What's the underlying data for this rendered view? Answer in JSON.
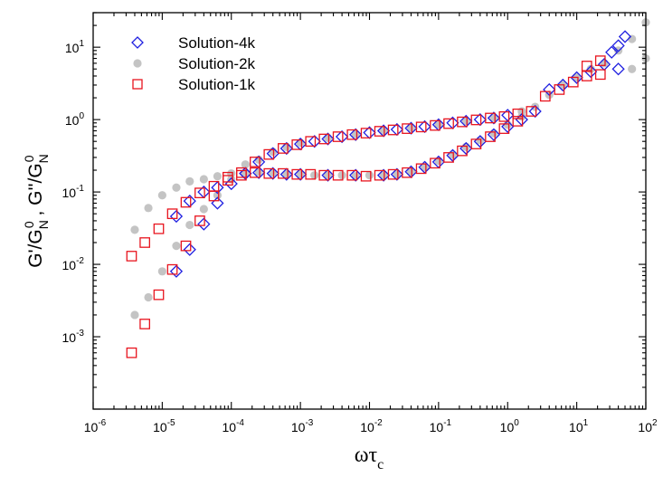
{
  "chart_data": {
    "type": "scatter",
    "title": "",
    "xlabel": {
      "main": "ωτ",
      "sub": "c"
    },
    "ylabel": [
      {
        "t": "G'/G",
        "kind": "n"
      },
      {
        "t": "N",
        "kind": "sub"
      },
      {
        "t": "0",
        "kind": "sup"
      },
      {
        "t": " , G''/G",
        "kind": "n"
      },
      {
        "t": "N",
        "kind": "sub"
      },
      {
        "t": "0",
        "kind": "sup"
      }
    ],
    "x_scale": "log",
    "y_scale": "log",
    "xlim": [
      1e-06,
      100
    ],
    "ylim": [
      0.0001,
      30
    ],
    "x_tick_values": [
      1e-06,
      1e-05,
      0.0001,
      0.001,
      0.01,
      0.1,
      1,
      10,
      100
    ],
    "y_tick_values": [
      0.001,
      0.01,
      0.1,
      1,
      10
    ],
    "x_tick_labels": [
      [
        "10",
        "-6"
      ],
      [
        "10",
        "-5"
      ],
      [
        "10",
        "-4"
      ],
      [
        "10",
        "-3"
      ],
      [
        "10",
        "-2"
      ],
      [
        "10",
        "-1"
      ],
      [
        "10",
        "0"
      ],
      [
        "10",
        "1"
      ],
      [
        "10",
        "2"
      ]
    ],
    "y_tick_labels": [
      [
        "10",
        "-3"
      ],
      [
        "10",
        "-2"
      ],
      [
        "10",
        "-1"
      ],
      [
        "10",
        "0"
      ],
      [
        "10",
        "1"
      ]
    ],
    "grid": false,
    "legend_position": "top-left",
    "series": [
      {
        "name": "Solution-4k",
        "marker": "diamond",
        "filled": false,
        "color": "#1f1fe0",
        "points": [
          [
            1.6e-05,
            0.046
          ],
          [
            2.5e-05,
            0.075
          ],
          [
            4e-05,
            0.1
          ],
          [
            6.3e-05,
            0.115
          ],
          [
            0.0001,
            0.13
          ],
          [
            1.6e-05,
            0.008
          ],
          [
            2.5e-05,
            0.016
          ],
          [
            4e-05,
            0.036
          ],
          [
            6.3e-05,
            0.07
          ],
          [
            0.00016,
            0.18
          ],
          [
            0.00025,
            0.26
          ],
          [
            0.0004,
            0.34
          ],
          [
            0.00063,
            0.4
          ],
          [
            0.001,
            0.46
          ],
          [
            0.0016,
            0.5
          ],
          [
            0.0025,
            0.54
          ],
          [
            0.004,
            0.58
          ],
          [
            0.0063,
            0.62
          ],
          [
            0.01,
            0.66
          ],
          [
            0.016,
            0.7
          ],
          [
            0.025,
            0.73
          ],
          [
            0.04,
            0.76
          ],
          [
            0.063,
            0.8
          ],
          [
            0.1,
            0.85
          ],
          [
            0.16,
            0.9
          ],
          [
            0.25,
            0.95
          ],
          [
            0.4,
            1.0
          ],
          [
            0.63,
            1.05
          ],
          [
            1.0,
            1.15
          ],
          [
            0.00016,
            0.18
          ],
          [
            0.00025,
            0.185
          ],
          [
            0.0004,
            0.18
          ],
          [
            0.00063,
            0.175
          ],
          [
            0.001,
            0.175
          ],
          [
            0.0025,
            0.17
          ],
          [
            0.0063,
            0.17
          ],
          [
            0.016,
            0.17
          ],
          [
            0.025,
            0.175
          ],
          [
            0.04,
            0.19
          ],
          [
            0.063,
            0.22
          ],
          [
            0.1,
            0.26
          ],
          [
            0.16,
            0.32
          ],
          [
            0.25,
            0.4
          ],
          [
            0.4,
            0.5
          ],
          [
            0.63,
            0.62
          ],
          [
            1.0,
            0.8
          ],
          [
            1.6,
            1.0
          ],
          [
            2.5,
            1.3
          ],
          [
            4.0,
            2.6
          ],
          [
            6.3,
            3.0
          ],
          [
            10,
            3.8
          ],
          [
            16,
            4.6
          ],
          [
            25,
            5.8
          ],
          [
            32,
            8.5
          ],
          [
            40,
            5.0
          ],
          [
            40,
            10.5
          ],
          [
            50,
            14.0
          ]
        ]
      },
      {
        "name": "Solution-2k",
        "marker": "circle",
        "filled": true,
        "color": "#c4c4c4",
        "points": [
          [
            4e-06,
            0.03
          ],
          [
            6.3e-06,
            0.06
          ],
          [
            1e-05,
            0.09
          ],
          [
            1.6e-05,
            0.115
          ],
          [
            2.5e-05,
            0.14
          ],
          [
            4e-06,
            0.002
          ],
          [
            6.3e-06,
            0.0035
          ],
          [
            1e-05,
            0.008
          ],
          [
            1.6e-05,
            0.018
          ],
          [
            2.5e-05,
            0.035
          ],
          [
            4e-05,
            0.058
          ],
          [
            6.3e-05,
            0.09
          ],
          [
            0.0001,
            0.15
          ],
          [
            0.00016,
            0.24
          ],
          [
            4e-05,
            0.15
          ],
          [
            6.3e-05,
            0.165
          ],
          [
            0.0001,
            0.18
          ],
          [
            0.00025,
            0.19
          ],
          [
            0.0004,
            0.185
          ],
          [
            0.00016,
            0.18
          ],
          [
            0.00063,
            0.175
          ],
          [
            0.001,
            0.175
          ],
          [
            0.0016,
            0.17
          ],
          [
            0.0025,
            0.17
          ],
          [
            0.004,
            0.17
          ],
          [
            0.0063,
            0.165
          ],
          [
            0.01,
            0.17
          ],
          [
            0.016,
            0.17
          ],
          [
            0.025,
            0.175
          ],
          [
            0.04,
            0.19
          ],
          [
            0.063,
            0.22
          ],
          [
            0.1,
            0.27
          ],
          [
            0.16,
            0.33
          ],
          [
            0.25,
            0.42
          ],
          [
            0.4,
            0.52
          ],
          [
            0.63,
            0.65
          ],
          [
            1.0,
            0.85
          ],
          [
            1.6,
            1.1
          ],
          [
            2.5,
            1.5
          ],
          [
            0.00025,
            0.28
          ],
          [
            0.0004,
            0.36
          ],
          [
            0.00063,
            0.42
          ],
          [
            0.001,
            0.48
          ],
          [
            0.0025,
            0.56
          ],
          [
            0.0063,
            0.63
          ],
          [
            0.016,
            0.7
          ],
          [
            0.04,
            0.77
          ],
          [
            0.1,
            0.86
          ],
          [
            0.25,
            0.96
          ],
          [
            0.63,
            1.06
          ],
          [
            1.6,
            1.3
          ],
          [
            4.0,
            2.2
          ],
          [
            6.3,
            3.0
          ],
          [
            10,
            3.8
          ],
          [
            16,
            5.0
          ],
          [
            25,
            6.0
          ],
          [
            40,
            9.0
          ],
          [
            63,
            13.0
          ],
          [
            100,
            22.0
          ],
          [
            63,
            5.0
          ],
          [
            100,
            7.0
          ]
        ]
      },
      {
        "name": "Solution-1k",
        "marker": "square",
        "filled": false,
        "color": "#e8141e",
        "points": [
          [
            3.6e-06,
            0.013
          ],
          [
            5.6e-06,
            0.02
          ],
          [
            8.9e-06,
            0.031
          ],
          [
            1.4e-05,
            0.05
          ],
          [
            2.2e-05,
            0.072
          ],
          [
            3.5e-05,
            0.097
          ],
          [
            5.6e-05,
            0.12
          ],
          [
            8.9e-05,
            0.145
          ],
          [
            0.00014,
            0.17
          ],
          [
            3.6e-06,
            0.0006
          ],
          [
            5.6e-06,
            0.0015
          ],
          [
            8.9e-06,
            0.0038
          ],
          [
            1.4e-05,
            0.0085
          ],
          [
            2.2e-05,
            0.018
          ],
          [
            3.5e-05,
            0.04
          ],
          [
            5.6e-05,
            0.088
          ],
          [
            8.9e-05,
            0.16
          ],
          [
            0.00014,
            0.185
          ],
          [
            0.00022,
            0.26
          ],
          [
            0.00035,
            0.33
          ],
          [
            0.00056,
            0.4
          ],
          [
            0.00089,
            0.45
          ],
          [
            0.0014,
            0.5
          ],
          [
            0.0022,
            0.54
          ],
          [
            0.0035,
            0.58
          ],
          [
            0.0056,
            0.62
          ],
          [
            0.0089,
            0.65
          ],
          [
            0.014,
            0.69
          ],
          [
            0.022,
            0.72
          ],
          [
            0.035,
            0.75
          ],
          [
            0.056,
            0.79
          ],
          [
            0.089,
            0.83
          ],
          [
            0.14,
            0.88
          ],
          [
            0.22,
            0.93
          ],
          [
            0.35,
            0.99
          ],
          [
            0.56,
            1.05
          ],
          [
            0.89,
            1.1
          ],
          [
            1.4,
            1.2
          ],
          [
            0.00022,
            0.185
          ],
          [
            0.00035,
            0.18
          ],
          [
            0.00056,
            0.18
          ],
          [
            0.00089,
            0.175
          ],
          [
            0.0014,
            0.175
          ],
          [
            0.0022,
            0.17
          ],
          [
            0.0035,
            0.17
          ],
          [
            0.0056,
            0.17
          ],
          [
            0.0089,
            0.165
          ],
          [
            0.014,
            0.17
          ],
          [
            0.022,
            0.175
          ],
          [
            0.035,
            0.185
          ],
          [
            0.056,
            0.21
          ],
          [
            0.089,
            0.25
          ],
          [
            0.14,
            0.3
          ],
          [
            0.22,
            0.37
          ],
          [
            0.35,
            0.46
          ],
          [
            0.56,
            0.58
          ],
          [
            0.89,
            0.75
          ],
          [
            1.4,
            0.95
          ],
          [
            2.2,
            1.3
          ],
          [
            3.5,
            2.1
          ],
          [
            5.6,
            2.6
          ],
          [
            8.9,
            3.3
          ],
          [
            14,
            4.0
          ],
          [
            22,
            4.2
          ],
          [
            14,
            5.5
          ],
          [
            22,
            6.5
          ]
        ]
      }
    ]
  }
}
